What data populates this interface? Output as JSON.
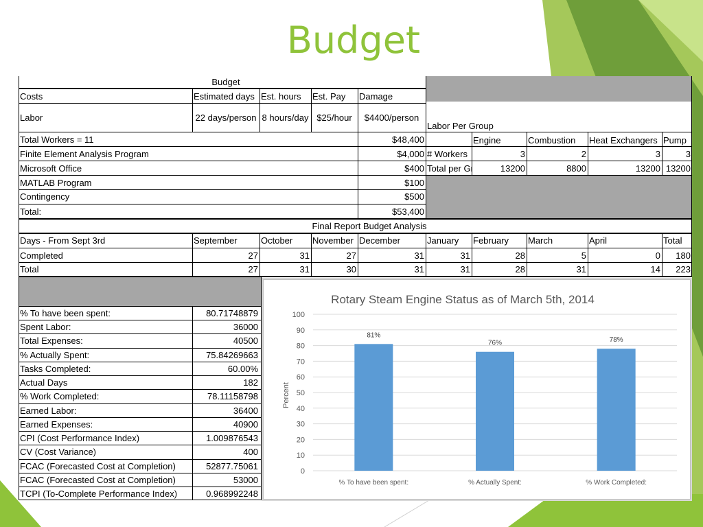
{
  "slide": {
    "title": "Budget"
  },
  "budget": {
    "title": "Budget",
    "headers": {
      "costs": "Costs",
      "est_days": "Estimated days",
      "est_hours": "Est. hours",
      "est_pay": "Est. Pay",
      "damage": "Damage"
    },
    "labor": {
      "label": "Labor",
      "days": "22 days/person",
      "hours": "8 hours/day",
      "pay": "$25/hour",
      "damage": "$4400/person"
    },
    "items": [
      {
        "label": "Total Workers = 11",
        "value": "$48,400"
      },
      {
        "label": "Finite Element Analysis Program",
        "value": "$4,000"
      },
      {
        "label": "Microsoft Office",
        "value": "$400"
      },
      {
        "label": "MATLAB Program",
        "value": "$100"
      },
      {
        "label": "Contingency",
        "value": "$500"
      },
      {
        "label": "Total:",
        "value": "$53,400"
      }
    ]
  },
  "labor_group": {
    "title": "Labor Per Group",
    "columns": [
      "Engine",
      "Combustion",
      "Heat Exchangers",
      "Pump"
    ],
    "workers_label": "# Workers",
    "workers": [
      "3",
      "2",
      "3",
      "3"
    ],
    "total_label": "Total per Group",
    "totals": [
      "13200",
      "8800",
      "13200",
      "13200"
    ]
  },
  "final_report": {
    "title": "Final Report Budget Analysis",
    "header_label": "Days - From Sept 3rd",
    "months": [
      "September",
      "October",
      "November",
      "December",
      "January",
      "February",
      "March",
      "April",
      "Total"
    ],
    "rows": [
      {
        "label": "Completed",
        "values": [
          "27",
          "31",
          "27",
          "31",
          "31",
          "28",
          "5",
          "0",
          "180"
        ]
      },
      {
        "label": "Total",
        "values": [
          "27",
          "31",
          "30",
          "31",
          "31",
          "28",
          "31",
          "14",
          "223"
        ]
      }
    ]
  },
  "metrics": [
    {
      "label": "% To have been spent:",
      "value": "80.71748879"
    },
    {
      "label": "Spent Labor:",
      "value": "36000"
    },
    {
      "label": "Total Expenses:",
      "value": "40500"
    },
    {
      "label": "% Actually Spent:",
      "value": "75.84269663"
    },
    {
      "label": "Tasks Completed:",
      "value": "60.00%"
    },
    {
      "label": "Actual Days",
      "value": "182"
    },
    {
      "label": "% Work Completed:",
      "value": "78.11158798"
    },
    {
      "label": "Earned Labor:",
      "value": "36400"
    },
    {
      "label": "Earned Expenses:",
      "value": "40900"
    },
    {
      "label": "CPI (Cost Performance Index)",
      "value": "1.009876543"
    },
    {
      "label": "CV (Cost Variance)",
      "value": "400"
    },
    {
      "label": "FCAC (Forecasted Cost at Completion)",
      "value": "52877.75061"
    },
    {
      "label": "FCAC (Forecasted Cost at Completion)",
      "value": "53000"
    },
    {
      "label": "TCPI (To-Complete Performance Index)",
      "value": "0.968992248"
    }
  ],
  "chart_data": {
    "type": "bar",
    "title": "Rotary Steam Engine Status as of March 5th, 2014",
    "categories": [
      "% To have been spent:",
      "% Actually Spent:",
      "% Work Completed:"
    ],
    "values": [
      81,
      76,
      78
    ],
    "data_labels": [
      "81%",
      "76%",
      "78%"
    ],
    "ylabel": "Percent",
    "xlabel": "",
    "ylim": [
      0,
      100
    ],
    "yticks": [
      0,
      10,
      20,
      30,
      40,
      50,
      60,
      70,
      80,
      90,
      100
    ],
    "grid": true,
    "bar_color": "#5b9bd5"
  },
  "colors": {
    "title": "#8fc33a",
    "gray_fill": "#a6a6a6",
    "bar": "#5b9bd5"
  }
}
